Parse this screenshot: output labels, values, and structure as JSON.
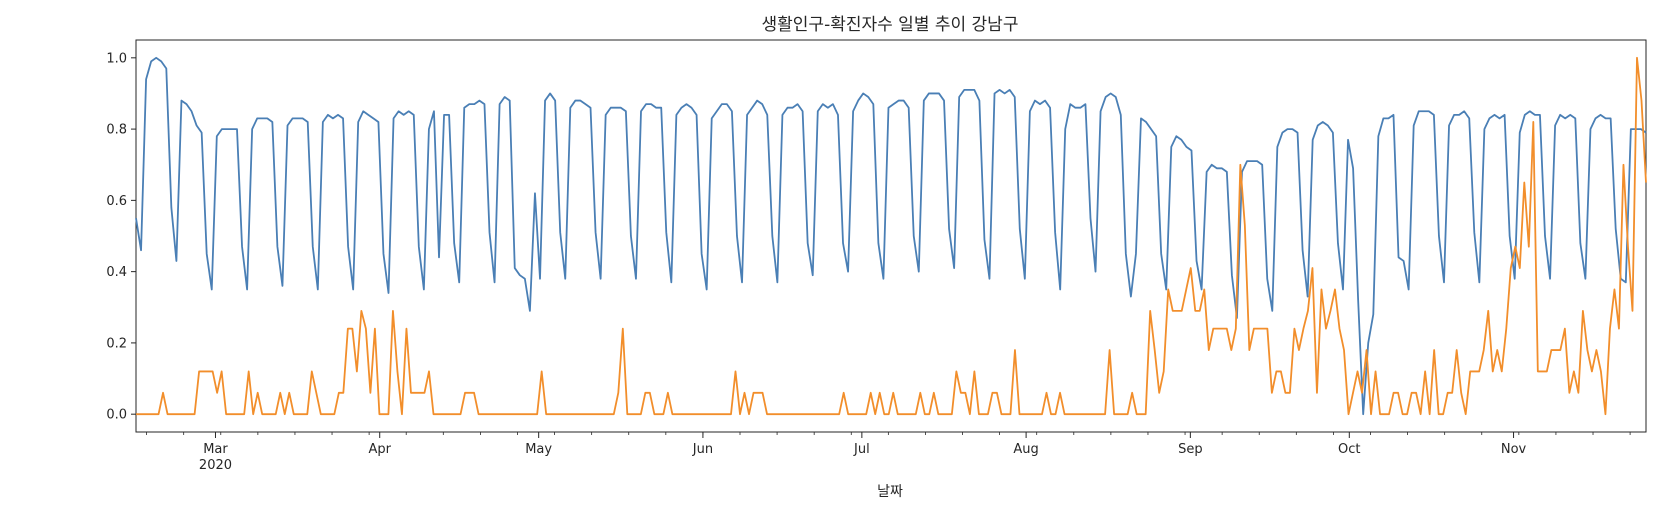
{
  "chart_data": {
    "type": "line",
    "title": "생활인구-확진자수 일별 추이 강남구",
    "xlabel": "날짜",
    "ylabel": "",
    "grid": false,
    "ylim": [
      -0.05,
      1.05
    ],
    "xlim": [
      "2020-02-15",
      "2020-11-26"
    ],
    "y_ticks": [
      "0.0",
      "0.2",
      "0.4",
      "0.6",
      "0.8",
      "1.0"
    ],
    "x_ticks": [
      {
        "date": "2020-03-01",
        "label": "Mar",
        "sublabel": "2020"
      },
      {
        "date": "2020-04-01",
        "label": "Apr",
        "sublabel": ""
      },
      {
        "date": "2020-05-01",
        "label": "May",
        "sublabel": ""
      },
      {
        "date": "2020-06-01",
        "label": "Jun",
        "sublabel": ""
      },
      {
        "date": "2020-07-01",
        "label": "Jul",
        "sublabel": ""
      },
      {
        "date": "2020-08-01",
        "label": "Aug",
        "sublabel": ""
      },
      {
        "date": "2020-09-01",
        "label": "Sep",
        "sublabel": ""
      },
      {
        "date": "2020-10-01",
        "label": "Oct",
        "sublabel": ""
      },
      {
        "date": "2020-11-01",
        "label": "Nov",
        "sublabel": ""
      }
    ],
    "series": [
      {
        "color": "#4a7fb5",
        "values": [
          0.55,
          0.46,
          0.94,
          0.99,
          1.0,
          0.99,
          0.97,
          0.58,
          0.43,
          0.88,
          0.87,
          0.85,
          0.81,
          0.79,
          0.45,
          0.35,
          0.78,
          0.8,
          0.8,
          0.8,
          0.8,
          0.47,
          0.35,
          0.8,
          0.83,
          0.83,
          0.83,
          0.82,
          0.47,
          0.36,
          0.81,
          0.83,
          0.83,
          0.83,
          0.82,
          0.47,
          0.35,
          0.82,
          0.84,
          0.83,
          0.84,
          0.83,
          0.47,
          0.35,
          0.82,
          0.85,
          0.84,
          0.83,
          0.82,
          0.45,
          0.34,
          0.83,
          0.85,
          0.84,
          0.85,
          0.84,
          0.47,
          0.35,
          0.8,
          0.85,
          0.44,
          0.84,
          0.84,
          0.48,
          0.37,
          0.86,
          0.87,
          0.87,
          0.88,
          0.87,
          0.51,
          0.37,
          0.87,
          0.89,
          0.88,
          0.41,
          0.39,
          0.38,
          0.29,
          0.62,
          0.38,
          0.88,
          0.9,
          0.88,
          0.51,
          0.38,
          0.86,
          0.88,
          0.88,
          0.87,
          0.86,
          0.51,
          0.38,
          0.84,
          0.86,
          0.86,
          0.86,
          0.85,
          0.5,
          0.38,
          0.85,
          0.87,
          0.87,
          0.86,
          0.86,
          0.51,
          0.37,
          0.84,
          0.86,
          0.87,
          0.86,
          0.84,
          0.45,
          0.35,
          0.83,
          0.85,
          0.87,
          0.87,
          0.85,
          0.5,
          0.37,
          0.84,
          0.86,
          0.88,
          0.87,
          0.84,
          0.5,
          0.37,
          0.84,
          0.86,
          0.86,
          0.87,
          0.85,
          0.48,
          0.39,
          0.85,
          0.87,
          0.86,
          0.87,
          0.84,
          0.48,
          0.4,
          0.85,
          0.88,
          0.9,
          0.89,
          0.87,
          0.48,
          0.38,
          0.86,
          0.87,
          0.88,
          0.88,
          0.86,
          0.5,
          0.4,
          0.88,
          0.9,
          0.9,
          0.9,
          0.88,
          0.52,
          0.41,
          0.89,
          0.91,
          0.91,
          0.91,
          0.88,
          0.49,
          0.38,
          0.9,
          0.91,
          0.9,
          0.91,
          0.89,
          0.52,
          0.38,
          0.85,
          0.88,
          0.87,
          0.88,
          0.86,
          0.51,
          0.35,
          0.8,
          0.87,
          0.86,
          0.86,
          0.87,
          0.55,
          0.4,
          0.85,
          0.89,
          0.9,
          0.89,
          0.84,
          0.45,
          0.33,
          0.45,
          0.83,
          0.82,
          0.8,
          0.78,
          0.45,
          0.35,
          0.75,
          0.78,
          0.77,
          0.75,
          0.74,
          0.43,
          0.35,
          0.68,
          0.7,
          0.69,
          0.69,
          0.68,
          0.39,
          0.27,
          0.68,
          0.71,
          0.71,
          0.71,
          0.7,
          0.38,
          0.29,
          0.75,
          0.79,
          0.8,
          0.8,
          0.79,
          0.46,
          0.33,
          0.77,
          0.81,
          0.82,
          0.81,
          0.79,
          0.48,
          0.35,
          0.77,
          0.69,
          0.32,
          0.0,
          0.2,
          0.28,
          0.78,
          0.83,
          0.83,
          0.84,
          0.44,
          0.43,
          0.35,
          0.81,
          0.85,
          0.85,
          0.85,
          0.84,
          0.5,
          0.37,
          0.81,
          0.84,
          0.84,
          0.85,
          0.83,
          0.51,
          0.37,
          0.8,
          0.83,
          0.84,
          0.83,
          0.84,
          0.5,
          0.38,
          0.79,
          0.84,
          0.85,
          0.84,
          0.84,
          0.5,
          0.38,
          0.81,
          0.84,
          0.83,
          0.84,
          0.83,
          0.48,
          0.38,
          0.8,
          0.83,
          0.84,
          0.83,
          0.83,
          0.52,
          0.38,
          0.37,
          0.8,
          0.8,
          0.8,
          0.79
        ]
      },
      {
        "color": "#f28e2b",
        "values": [
          0.0,
          0.0,
          0.0,
          0.0,
          0.0,
          0.0,
          0.06,
          0.0,
          0.0,
          0.0,
          0.0,
          0.0,
          0.0,
          0.0,
          0.12,
          0.12,
          0.12,
          0.12,
          0.06,
          0.12,
          0.0,
          0.0,
          0.0,
          0.0,
          0.0,
          0.12,
          0.0,
          0.06,
          0.0,
          0.0,
          0.0,
          0.0,
          0.06,
          0.0,
          0.06,
          0.0,
          0.0,
          0.0,
          0.0,
          0.12,
          0.06,
          0.0,
          0.0,
          0.0,
          0.0,
          0.06,
          0.06,
          0.24,
          0.24,
          0.12,
          0.29,
          0.24,
          0.06,
          0.24,
          0.0,
          0.0,
          0.0,
          0.29,
          0.12,
          0.0,
          0.24,
          0.06,
          0.06,
          0.06,
          0.06,
          0.12,
          0.0,
          0.0,
          0.0,
          0.0,
          0.0,
          0.0,
          0.0,
          0.06,
          0.06,
          0.06,
          0.0,
          0.0,
          0.0,
          0.0,
          0.0,
          0.0,
          0.0,
          0.0,
          0.0,
          0.0,
          0.0,
          0.0,
          0.0,
          0.0,
          0.12,
          0.0,
          0.0,
          0.0,
          0.0,
          0.0,
          0.0,
          0.0,
          0.0,
          0.0,
          0.0,
          0.0,
          0.0,
          0.0,
          0.0,
          0.0,
          0.0,
          0.06,
          0.24,
          0.0,
          0.0,
          0.0,
          0.0,
          0.06,
          0.06,
          0.0,
          0.0,
          0.0,
          0.06,
          0.0,
          0.0,
          0.0,
          0.0,
          0.0,
          0.0,
          0.0,
          0.0,
          0.0,
          0.0,
          0.0,
          0.0,
          0.0,
          0.0,
          0.12,
          0.0,
          0.06,
          0.0,
          0.06,
          0.06,
          0.06,
          0.0,
          0.0,
          0.0,
          0.0,
          0.0,
          0.0,
          0.0,
          0.0,
          0.0,
          0.0,
          0.0,
          0.0,
          0.0,
          0.0,
          0.0,
          0.0,
          0.0,
          0.06,
          0.0,
          0.0,
          0.0,
          0.0,
          0.0,
          0.06,
          0.0,
          0.06,
          0.0,
          0.0,
          0.06,
          0.0,
          0.0,
          0.0,
          0.0,
          0.0,
          0.06,
          0.0,
          0.0,
          0.06,
          0.0,
          0.0,
          0.0,
          0.0,
          0.12,
          0.06,
          0.06,
          0.0,
          0.12,
          0.0,
          0.0,
          0.0,
          0.06,
          0.06,
          0.0,
          0.0,
          0.0,
          0.18,
          0.0,
          0.0,
          0.0,
          0.0,
          0.0,
          0.0,
          0.06,
          0.0,
          0.0,
          0.06,
          0.0,
          0.0,
          0.0,
          0.0,
          0.0,
          0.0,
          0.0,
          0.0,
          0.0,
          0.0,
          0.18,
          0.0,
          0.0,
          0.0,
          0.0,
          0.06,
          0.0,
          0.0,
          0.0,
          0.29,
          0.18,
          0.06,
          0.12,
          0.35,
          0.29,
          0.29,
          0.29,
          0.35,
          0.41,
          0.29,
          0.29,
          0.35,
          0.18,
          0.24,
          0.24,
          0.24,
          0.24,
          0.18,
          0.24,
          0.7,
          0.53,
          0.18,
          0.24,
          0.24,
          0.24,
          0.24,
          0.06,
          0.12,
          0.12,
          0.06,
          0.06,
          0.24,
          0.18,
          0.24,
          0.29,
          0.41,
          0.06,
          0.35,
          0.24,
          0.29,
          0.35,
          0.24,
          0.18,
          0.0,
          0.06,
          0.12,
          0.06,
          0.18,
          0.0,
          0.12,
          0.0,
          0.0,
          0.0,
          0.06,
          0.06,
          0.0,
          0.0,
          0.06,
          0.06,
          0.0,
          0.12,
          0.0,
          0.18,
          0.0,
          0.0,
          0.06,
          0.06,
          0.18,
          0.06,
          0.0,
          0.12,
          0.12,
          0.12,
          0.18,
          0.29,
          0.12,
          0.18,
          0.12,
          0.24,
          0.41,
          0.47,
          0.41,
          0.65,
          0.47,
          0.82,
          0.12,
          0.12,
          0.12,
          0.18,
          0.18,
          0.18,
          0.24,
          0.06,
          0.12,
          0.06,
          0.29,
          0.18,
          0.12,
          0.18,
          0.12,
          0.0,
          0.24,
          0.35,
          0.24,
          0.7,
          0.47,
          0.29,
          1.0,
          0.88,
          0.65
        ]
      }
    ]
  }
}
